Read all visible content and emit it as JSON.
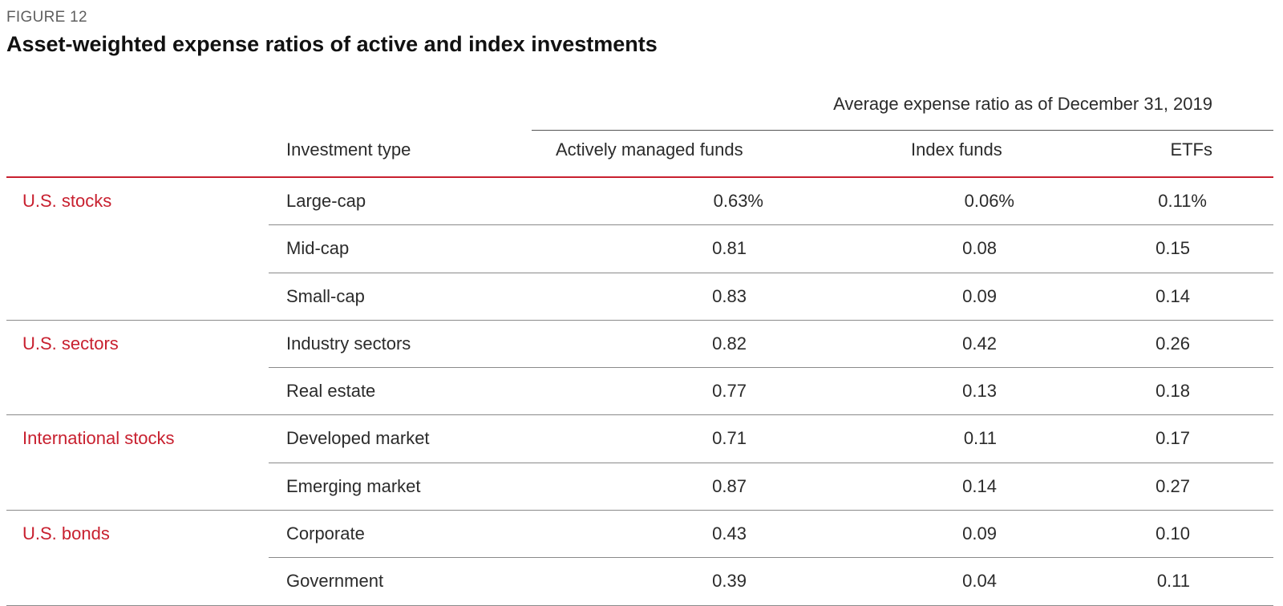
{
  "figure": {
    "label": "FIGURE 12",
    "title": "Asset-weighted expense ratios of active and index investments"
  },
  "table": {
    "span_header": "Average expense ratio as of December 31, 2019",
    "columns": [
      "Investment type",
      "Actively managed funds",
      "Index funds",
      "ETFs"
    ],
    "groups": [
      {
        "name": "U.S. stocks",
        "rows": [
          {
            "type": "Large-cap",
            "active": "0.63%",
            "index": "0.06%",
            "etf": "0.11%"
          },
          {
            "type": "Mid-cap",
            "active": "0.81",
            "index": "0.08",
            "etf": "0.15"
          },
          {
            "type": "Small-cap",
            "active": "0.83",
            "index": "0.09",
            "etf": "0.14"
          }
        ]
      },
      {
        "name": "U.S. sectors",
        "rows": [
          {
            "type": "Industry sectors",
            "active": "0.82",
            "index": "0.42",
            "etf": "0.26"
          },
          {
            "type": "Real estate",
            "active": "0.77",
            "index": "0.13",
            "etf": "0.18"
          }
        ]
      },
      {
        "name": "International stocks",
        "rows": [
          {
            "type": "Developed market",
            "active": "0.71",
            "index": "0.11",
            "etf": "0.17"
          },
          {
            "type": "Emerging market",
            "active": "0.87",
            "index": "0.14",
            "etf": "0.27"
          }
        ]
      },
      {
        "name": "U.S. bonds",
        "rows": [
          {
            "type": "Corporate",
            "active": "0.43",
            "index": "0.09",
            "etf": "0.10"
          },
          {
            "type": "Government",
            "active": "0.39",
            "index": "0.04",
            "etf": "0.11"
          }
        ]
      }
    ]
  },
  "colors": {
    "accent": "#c8202f",
    "text": "#2b2b2b",
    "rule": "#8a8a8a"
  }
}
